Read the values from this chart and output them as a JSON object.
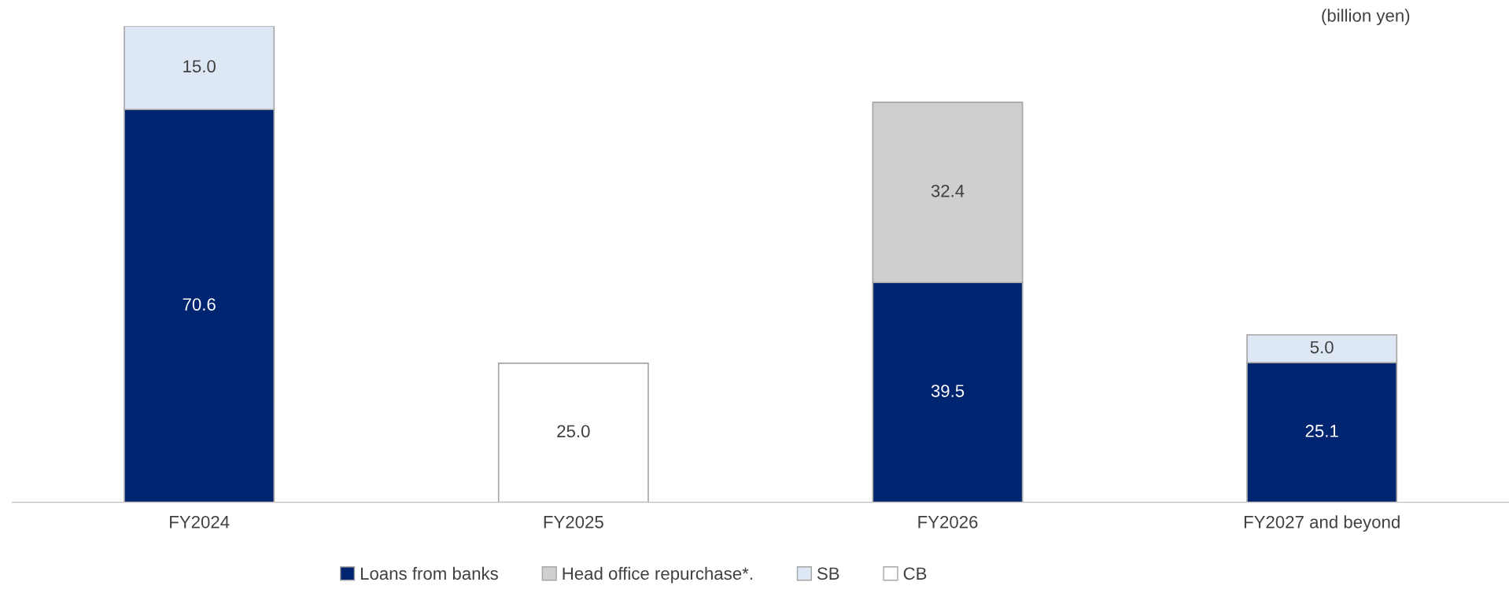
{
  "chart_data": {
    "type": "bar",
    "stacked": true,
    "legend": "bottom",
    "grid": false,
    "categories": [
      "FY2024",
      "FY2025",
      "FY2026",
      "FY2027 and beyond"
    ],
    "series": [
      {
        "name": "Loans from banks",
        "color": "#002570",
        "values": [
          70.6,
          null,
          39.5,
          25.1
        ],
        "value_labels": [
          "70.6",
          null,
          "39.5",
          "25.1"
        ]
      },
      {
        "name": "Head office repurchase*.",
        "color": "#d0ced0",
        "values": [
          null,
          null,
          32.4,
          null
        ],
        "value_labels": [
          null,
          null,
          "32.4",
          null
        ]
      },
      {
        "name": "SB",
        "color": "#dde8f4",
        "values": [
          15.0,
          null,
          null,
          5.0
        ],
        "value_labels": [
          "15.0",
          null,
          null,
          "5.0"
        ]
      },
      {
        "name": "CB",
        "color": "#ffffff",
        "values": [
          null,
          25.0,
          null,
          null
        ],
        "value_labels": [
          null,
          "25.0",
          null,
          null
        ]
      }
    ],
    "annotations": [
      "(billion yen)"
    ]
  }
}
